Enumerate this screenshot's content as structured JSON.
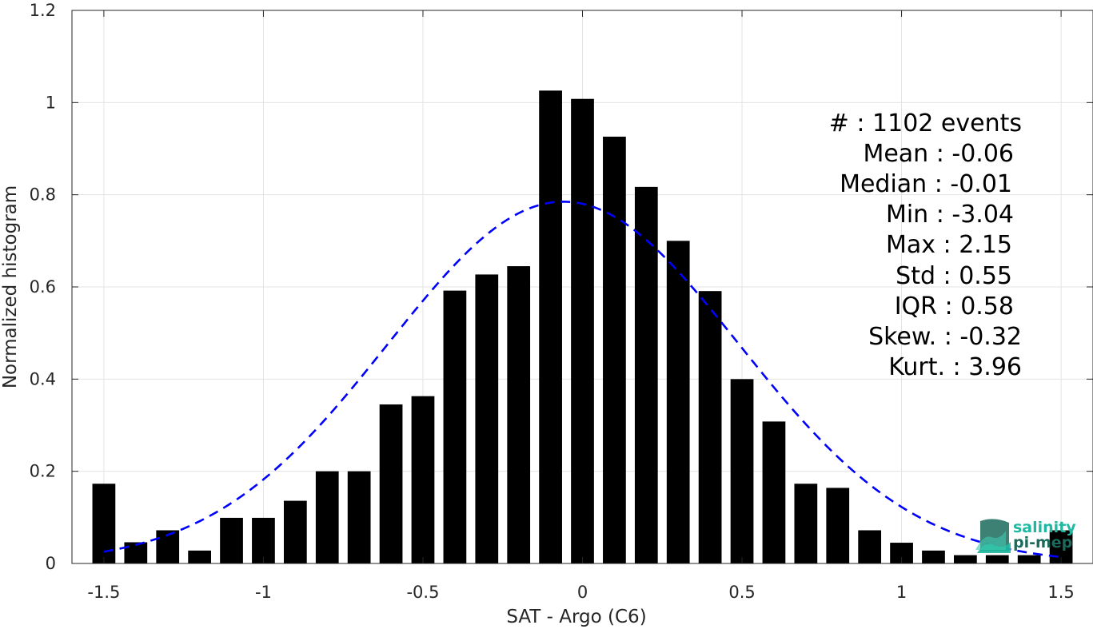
{
  "chart_data": {
    "type": "bar",
    "xlabel": "SAT - Argo (C6)",
    "ylabel": "Normalized histogram",
    "xlim": [
      -1.6,
      1.6
    ],
    "ylim": [
      0,
      1.2
    ],
    "xticks": [
      -1.5,
      -1,
      -0.5,
      0,
      0.5,
      1,
      1.5
    ],
    "xtick_labels": [
      "-1.5",
      "-1",
      "-0.5",
      "0",
      "0.5",
      "1",
      "1.5"
    ],
    "yticks": [
      0,
      0.2,
      0.4,
      0.6,
      0.8,
      1,
      1.2
    ],
    "ytick_labels": [
      "0",
      "0.2",
      "0.4",
      "0.6",
      "0.8",
      "1",
      "1.2"
    ],
    "grid": true,
    "bar_color": "#000000",
    "bin_width": 0.1,
    "x": [
      -1.5,
      -1.4,
      -1.3,
      -1.2,
      -1.1,
      -1.0,
      -0.9,
      -0.8,
      -0.7,
      -0.6,
      -0.5,
      -0.4,
      -0.3,
      -0.2,
      -0.1,
      0.0,
      0.1,
      0.2,
      0.3,
      0.4,
      0.5,
      0.6,
      0.7,
      0.8,
      0.9,
      1.0,
      1.1,
      1.2,
      1.3,
      1.4,
      1.5
    ],
    "values": [
      0.173,
      0.046,
      0.072,
      0.028,
      0.099,
      0.099,
      0.136,
      0.2,
      0.2,
      0.345,
      0.363,
      0.592,
      0.627,
      0.645,
      1.026,
      1.008,
      0.926,
      0.817,
      0.7,
      0.591,
      0.4,
      0.308,
      0.173,
      0.164,
      0.072,
      0.045,
      0.028,
      0.018,
      0.018,
      0.018,
      0.072
    ],
    "fit_curve": {
      "type": "gaussian",
      "mean": -0.06,
      "std": 0.55,
      "peak": 0.785,
      "color": "#0000ff",
      "style": "dashed"
    },
    "stats_lines": [
      "#  : 1102 events",
      "Mean : -0.06",
      "Median : -0.01",
      "Min : -3.04",
      "Max : 2.15",
      "Std : 0.55",
      "IQR : 0.58",
      "Skew. : -0.32",
      "Kurt. : 3.96"
    ]
  },
  "logo": {
    "line1": "salinity",
    "line2": "pi-mep",
    "color1": "#1fb8a0",
    "color2": "#1a6b5c"
  }
}
